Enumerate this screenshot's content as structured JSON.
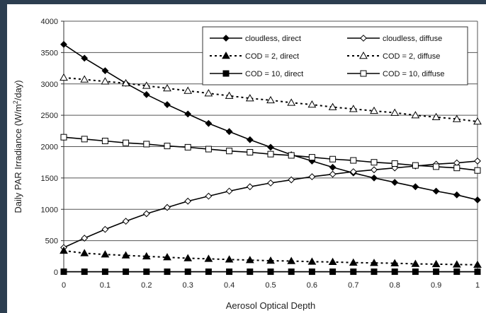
{
  "chart_data": {
    "type": "line",
    "title": "",
    "xlabel": "Aerosol Optical Depth",
    "ylabel_parts": {
      "prefix": "Daily PAR Irradiance (W/m",
      "sup": "2",
      "suffix": "/day)"
    },
    "xlim": [
      0,
      1
    ],
    "ylim": [
      0,
      4000
    ],
    "x_ticks": [
      0,
      0.1,
      0.2,
      0.3,
      0.4,
      0.5,
      0.6,
      0.7,
      0.8,
      0.9,
      1
    ],
    "x_tick_labels": [
      "0",
      "0.1",
      "0.2",
      "0.3",
      "0.4",
      "0.5",
      "0.6",
      "0.7",
      "0.8",
      "0.9",
      "1"
    ],
    "y_ticks": [
      0,
      500,
      1000,
      1500,
      2000,
      2500,
      3000,
      3500,
      4000
    ],
    "y_tick_labels": [
      "0",
      "500",
      "1000",
      "1500",
      "2000",
      "2500",
      "3000",
      "3500",
      "4000"
    ],
    "grid": "horizontal",
    "legend_position": "top-right",
    "x": [
      0,
      0.05,
      0.1,
      0.15,
      0.2,
      0.25,
      0.3,
      0.35,
      0.4,
      0.45,
      0.5,
      0.55,
      0.6,
      0.65,
      0.7,
      0.75,
      0.8,
      0.85,
      0.9,
      0.95,
      1
    ],
    "series": [
      {
        "name": "cloudless, direct",
        "marker": "diamond-filled",
        "dash": "solid",
        "color": "#000000",
        "values": [
          3630,
          3410,
          3210,
          3010,
          2830,
          2670,
          2520,
          2370,
          2240,
          2110,
          1990,
          1870,
          1770,
          1670,
          1580,
          1500,
          1430,
          1360,
          1290,
          1230,
          1150
        ]
      },
      {
        "name": "cloudless, diffuse",
        "marker": "diamond-open",
        "dash": "solid",
        "color": "#000000",
        "values": [
          390,
          540,
          680,
          810,
          930,
          1030,
          1130,
          1210,
          1290,
          1360,
          1420,
          1470,
          1520,
          1560,
          1600,
          1630,
          1660,
          1690,
          1720,
          1740,
          1770
        ]
      },
      {
        "name": "COD = 2, direct",
        "marker": "triangle-filled",
        "dash": "dotted",
        "color": "#000000",
        "values": [
          340,
          300,
          280,
          265,
          250,
          235,
          220,
          210,
          200,
          190,
          180,
          175,
          165,
          160,
          150,
          145,
          140,
          130,
          125,
          120,
          115
        ]
      },
      {
        "name": "COD = 2, diffuse",
        "marker": "triangle-open",
        "dash": "dotted",
        "color": "#000000",
        "values": [
          3100,
          3070,
          3040,
          3010,
          2970,
          2930,
          2890,
          2850,
          2810,
          2770,
          2740,
          2700,
          2670,
          2630,
          2600,
          2570,
          2540,
          2500,
          2470,
          2440,
          2400
        ]
      },
      {
        "name": "COD = 10, direct",
        "marker": "square-filled",
        "dash": "solid",
        "color": "#000000",
        "values": [
          5,
          5,
          5,
          5,
          5,
          5,
          5,
          5,
          5,
          5,
          5,
          5,
          5,
          5,
          5,
          5,
          5,
          5,
          5,
          5,
          5
        ]
      },
      {
        "name": "COD = 10, diffuse",
        "marker": "square-open",
        "dash": "solid",
        "color": "#000000",
        "values": [
          2150,
          2120,
          2090,
          2060,
          2040,
          2010,
          1990,
          1960,
          1930,
          1910,
          1880,
          1860,
          1830,
          1800,
          1780,
          1750,
          1730,
          1700,
          1680,
          1660,
          1620
        ]
      }
    ]
  }
}
